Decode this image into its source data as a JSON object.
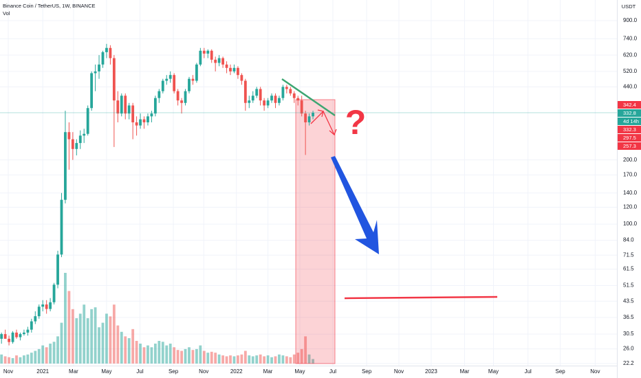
{
  "chart_data": {
    "type": "candlestick",
    "title": "Binance Coin / TetherUS, 1W, BINANCE",
    "volume_label": "Vol",
    "axis_unit": "USDT",
    "log_scale": true,
    "grid": true,
    "up_color": "#26a69a",
    "down_color": "#ef5350",
    "ylim": [
      21.7,
      1124
    ],
    "yticks": [
      {
        "value": 900,
        "label": "900.0"
      },
      {
        "value": 740,
        "label": "740.0"
      },
      {
        "value": 620,
        "label": "620.0"
      },
      {
        "value": 520,
        "label": "520.0"
      },
      {
        "value": 440,
        "label": "440.0"
      },
      {
        "value": 200,
        "label": "200.0"
      },
      {
        "value": 170,
        "label": "170.0"
      },
      {
        "value": 140,
        "label": "140.0"
      },
      {
        "value": 120,
        "label": "120.0"
      },
      {
        "value": 100,
        "label": "100.0"
      },
      {
        "value": 84,
        "label": "84.0"
      },
      71.5,
      61.5,
      51.5,
      43.5,
      36.5,
      30.5,
      {
        "value": 26,
        "label": "26.0"
      },
      22.2
    ],
    "xlim": [
      -0.4,
      164
    ],
    "xticks": [
      {
        "value": 1.8,
        "label": "Nov"
      },
      {
        "value": 11,
        "label": "2021"
      },
      {
        "value": 19.2,
        "label": "Mar"
      },
      {
        "value": 28,
        "label": "May"
      },
      {
        "value": 36.9,
        "label": "Jul"
      },
      {
        "value": 45.8,
        "label": "Sep"
      },
      {
        "value": 53.9,
        "label": "Nov"
      },
      {
        "value": 62.6,
        "label": "2022"
      },
      {
        "value": 71,
        "label": "Mar"
      },
      {
        "value": 79.5,
        "label": "May"
      },
      {
        "value": 88.3,
        "label": "Jul"
      },
      {
        "value": 97.3,
        "label": "Sep"
      },
      {
        "value": 105.9,
        "label": "Nov"
      },
      {
        "value": 114.5,
        "label": "2023"
      },
      {
        "value": 123.4,
        "label": "Mar"
      },
      {
        "value": 131.1,
        "label": "May"
      },
      {
        "value": 140.3,
        "label": "Jul"
      },
      {
        "value": 148.9,
        "label": "Sep"
      },
      {
        "value": 158.2,
        "label": "Nov"
      }
    ],
    "candles": [
      [
        29,
        31,
        27.5,
        30.5
      ],
      [
        30.5,
        32,
        29,
        29
      ],
      [
        29,
        30,
        27,
        28
      ],
      [
        28,
        31.5,
        27.5,
        31
      ],
      [
        31,
        32,
        29,
        29.5
      ],
      [
        29.5,
        31,
        28.5,
        30.5
      ],
      [
        30.5,
        32,
        30,
        31
      ],
      [
        31,
        33,
        30,
        32
      ],
      [
        32,
        36,
        31,
        35
      ],
      [
        35,
        39,
        34,
        37
      ],
      [
        37,
        42,
        36,
        41
      ],
      [
        41,
        44,
        39,
        42
      ],
      [
        42,
        44,
        38,
        40
      ],
      [
        40,
        45,
        39,
        43
      ],
      [
        43,
        53,
        42,
        52
      ],
      [
        52,
        75,
        50,
        72
      ],
      [
        72,
        140,
        70,
        130
      ],
      [
        130,
        340,
        125,
        270
      ],
      [
        270,
        300,
        180,
        250
      ],
      [
        250,
        270,
        200,
        225
      ],
      [
        225,
        250,
        210,
        240
      ],
      [
        240,
        275,
        225,
        260
      ],
      [
        260,
        280,
        240,
        265
      ],
      [
        265,
        360,
        260,
        350
      ],
      [
        350,
        520,
        340,
        510
      ],
      [
        510,
        560,
        420,
        520
      ],
      [
        520,
        620,
        480,
        560
      ],
      [
        560,
        650,
        540,
        640
      ],
      [
        640,
        700,
        600,
        670
      ],
      [
        670,
        690,
        560,
        600
      ],
      [
        600,
        620,
        230,
        380
      ],
      [
        380,
        420,
        300,
        330
      ],
      [
        330,
        410,
        320,
        400
      ],
      [
        400,
        410,
        310,
        330
      ],
      [
        330,
        370,
        310,
        360
      ],
      [
        360,
        370,
        250,
        300
      ],
      [
        300,
        320,
        260,
        290
      ],
      [
        290,
        330,
        280,
        310
      ],
      [
        310,
        320,
        280,
        300
      ],
      [
        300,
        330,
        290,
        320
      ],
      [
        320,
        340,
        300,
        330
      ],
      [
        330,
        400,
        320,
        390
      ],
      [
        390,
        430,
        370,
        420
      ],
      [
        420,
        480,
        410,
        470
      ],
      [
        470,
        500,
        450,
        480
      ],
      [
        480,
        520,
        460,
        500
      ],
      [
        500,
        510,
        410,
        420
      ],
      [
        420,
        430,
        360,
        380
      ],
      [
        380,
        390,
        330,
        370
      ],
      [
        370,
        430,
        360,
        420
      ],
      [
        420,
        490,
        410,
        480
      ],
      [
        480,
        500,
        450,
        470
      ],
      [
        470,
        570,
        460,
        560
      ],
      [
        560,
        670,
        550,
        650
      ],
      [
        650,
        670,
        600,
        630
      ],
      [
        630,
        660,
        600,
        650
      ],
      [
        650,
        660,
        570,
        590
      ],
      [
        590,
        610,
        520,
        570
      ],
      [
        570,
        620,
        550,
        600
      ],
      [
        600,
        610,
        540,
        560
      ],
      [
        560,
        580,
        510,
        540
      ],
      [
        540,
        560,
        500,
        520
      ],
      [
        520,
        560,
        510,
        540
      ],
      [
        540,
        550,
        480,
        500
      ],
      [
        500,
        510,
        450,
        470
      ],
      [
        470,
        480,
        340,
        370
      ],
      [
        370,
        400,
        350,
        380
      ],
      [
        380,
        420,
        370,
        400
      ],
      [
        400,
        440,
        390,
        430
      ],
      [
        430,
        440,
        360,
        380
      ],
      [
        380,
        390,
        340,
        360
      ],
      [
        360,
        390,
        350,
        380
      ],
      [
        380,
        410,
        370,
        400
      ],
      [
        400,
        410,
        350,
        370
      ],
      [
        370,
        400,
        360,
        390
      ],
      [
        390,
        450,
        380,
        440
      ],
      [
        440,
        450,
        410,
        430
      ],
      [
        430,
        440,
        400,
        410
      ],
      [
        410,
        420,
        370,
        390
      ],
      [
        390,
        400,
        360,
        380
      ],
      [
        380,
        400,
        320,
        330
      ],
      [
        330,
        340,
        211,
        300
      ],
      [
        300,
        330,
        290,
        320
      ],
      [
        320,
        340,
        310,
        332.8
      ]
    ],
    "volume": [
      10,
      8,
      7,
      6,
      9,
      7,
      9,
      10,
      12,
      14,
      16,
      20,
      18,
      22,
      24,
      30,
      45,
      100,
      80,
      60,
      50,
      55,
      65,
      50,
      60,
      62,
      40,
      45,
      55,
      52,
      65,
      42,
      35,
      30,
      28,
      38,
      25,
      22,
      18,
      20,
      18,
      22,
      25,
      24,
      20,
      22,
      18,
      15,
      14,
      16,
      18,
      15,
      16,
      20,
      14,
      12,
      13,
      12,
      10,
      9,
      8,
      9,
      8,
      9,
      10,
      14,
      9,
      8,
      9,
      10,
      8,
      9,
      7,
      8,
      10,
      9,
      8,
      7,
      10,
      12,
      16,
      30,
      10,
      5
    ],
    "volume_lim": [
      0,
      100
    ],
    "price_labels": [
      {
        "value": 342.4,
        "color": "#f23645"
      },
      {
        "value": 332.8,
        "color": "#26a69a"
      },
      {
        "text": "4d 14h",
        "color": "#26a69a"
      },
      {
        "value": 332.3,
        "color": "#f23645"
      },
      {
        "value": 297.5,
        "color": "#f23645"
      },
      {
        "value": 257.3,
        "color": "#f23645"
      }
    ],
    "annotation": "?"
  }
}
